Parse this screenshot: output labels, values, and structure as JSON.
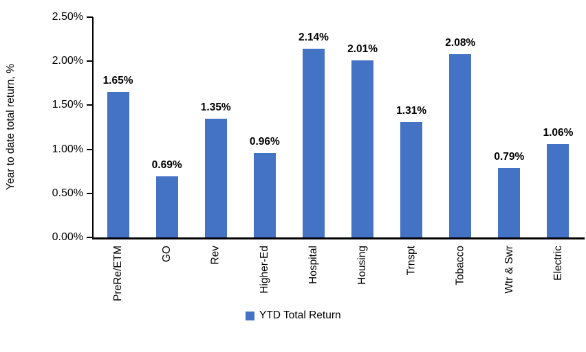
{
  "chart_data": {
    "type": "bar",
    "title": "",
    "ylabel": "Year to date total return, %",
    "xlabel": "",
    "categories": [
      "PreRe/ETM",
      "GO",
      "Rev",
      "Higher-Ed",
      "Hospital",
      "Housing",
      "Trnspt",
      "Tobacco",
      "Wtr & Swr",
      "Electric"
    ],
    "series": [
      {
        "name": "YTD Total Return",
        "values": [
          1.65,
          0.69,
          1.35,
          0.96,
          2.14,
          2.01,
          1.31,
          2.08,
          0.79,
          1.06
        ],
        "labels": [
          "1.65%",
          "0.69%",
          "1.35%",
          "0.96%",
          "2.14%",
          "2.01%",
          "1.31%",
          "2.08%",
          "0.79%",
          "1.06%"
        ],
        "color": "#4472C4"
      }
    ],
    "ylim": [
      0,
      2.5
    ],
    "yticks": [
      0,
      0.5,
      1.0,
      1.5,
      2.0,
      2.5
    ],
    "ytick_labels": [
      "0.00%",
      "0.50%",
      "1.00%",
      "1.50%",
      "2.00%",
      "2.50%"
    ],
    "grid": false,
    "legend": {
      "position": "bottom",
      "entries": [
        "YTD Total Return"
      ]
    }
  },
  "colors": {
    "bar": "#4472C4",
    "axis": "#000000",
    "text": "#000000"
  }
}
